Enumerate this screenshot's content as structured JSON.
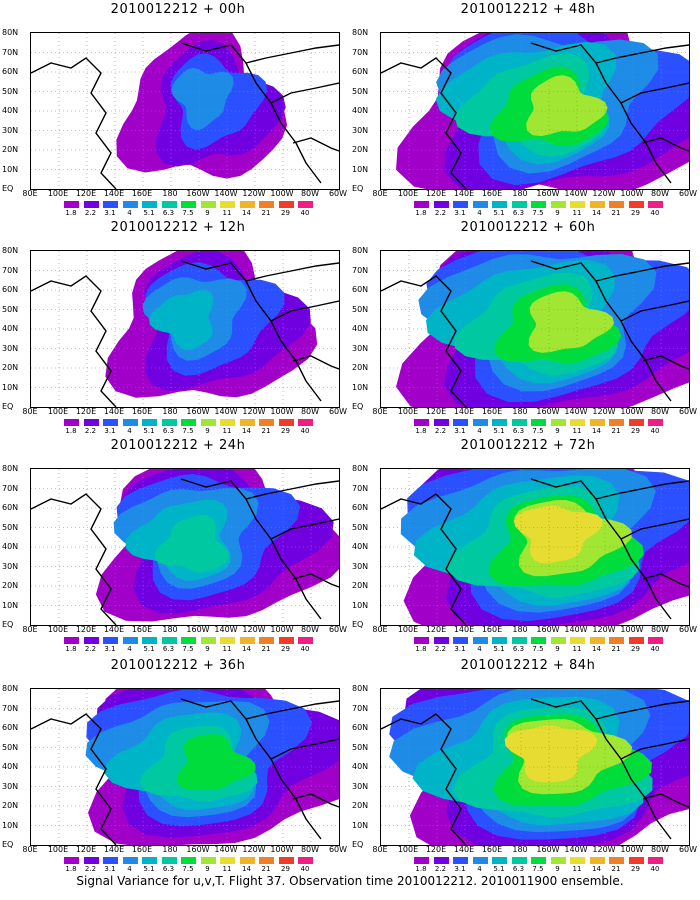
{
  "colorbar": {
    "levels": [
      "1.8",
      "2.2",
      "3.1",
      "4",
      "5.1",
      "6.3",
      "7.5",
      "9",
      "11",
      "14",
      "21",
      "29",
      "40"
    ],
    "colors": [
      "#a000c8",
      "#7000e0",
      "#2a50ff",
      "#1e8ce6",
      "#00b4c8",
      "#00c8a0",
      "#00dc3c",
      "#a0e632",
      "#e6dc32",
      "#f0b428",
      "#f08028",
      "#f03c28",
      "#f01e82"
    ]
  },
  "x_ticks": [
    "80E",
    "100E",
    "120E",
    "140E",
    "160E",
    "180",
    "160W",
    "140W",
    "120W",
    "100W",
    "80W",
    "60W"
  ],
  "y_ticks": [
    "80N",
    "70N",
    "60N",
    "50N",
    "40N",
    "30N",
    "20N",
    "10N",
    "EQ"
  ],
  "panels": [
    {
      "title": "2010012212 + 00h",
      "intensity": 0.1,
      "coverage": 0.45,
      "stagger": 0.0
    },
    {
      "title": "2010012212 + 48h",
      "intensity": 0.55,
      "coverage": 0.85,
      "stagger": 0.2
    },
    {
      "title": "2010012212 + 12h",
      "intensity": 0.2,
      "coverage": 0.55,
      "stagger": 0.4
    },
    {
      "title": "2010012212 + 60h",
      "intensity": 0.6,
      "coverage": 0.9,
      "stagger": 0.6
    },
    {
      "title": "2010012212 + 24h",
      "intensity": 0.3,
      "coverage": 0.65,
      "stagger": 0.8
    },
    {
      "title": "2010012212 + 72h",
      "intensity": 0.65,
      "coverage": 0.92,
      "stagger": 1.0
    },
    {
      "title": "2010012212 + 36h",
      "intensity": 0.45,
      "coverage": 0.75,
      "stagger": 1.2
    },
    {
      "title": "2010012212 + 84h",
      "intensity": 0.7,
      "coverage": 0.95,
      "stagger": 1.4
    }
  ],
  "caption": "Signal Variance for u,v,T. Flight 37. Observation time 2010012212. 2010011900 ensemble."
}
